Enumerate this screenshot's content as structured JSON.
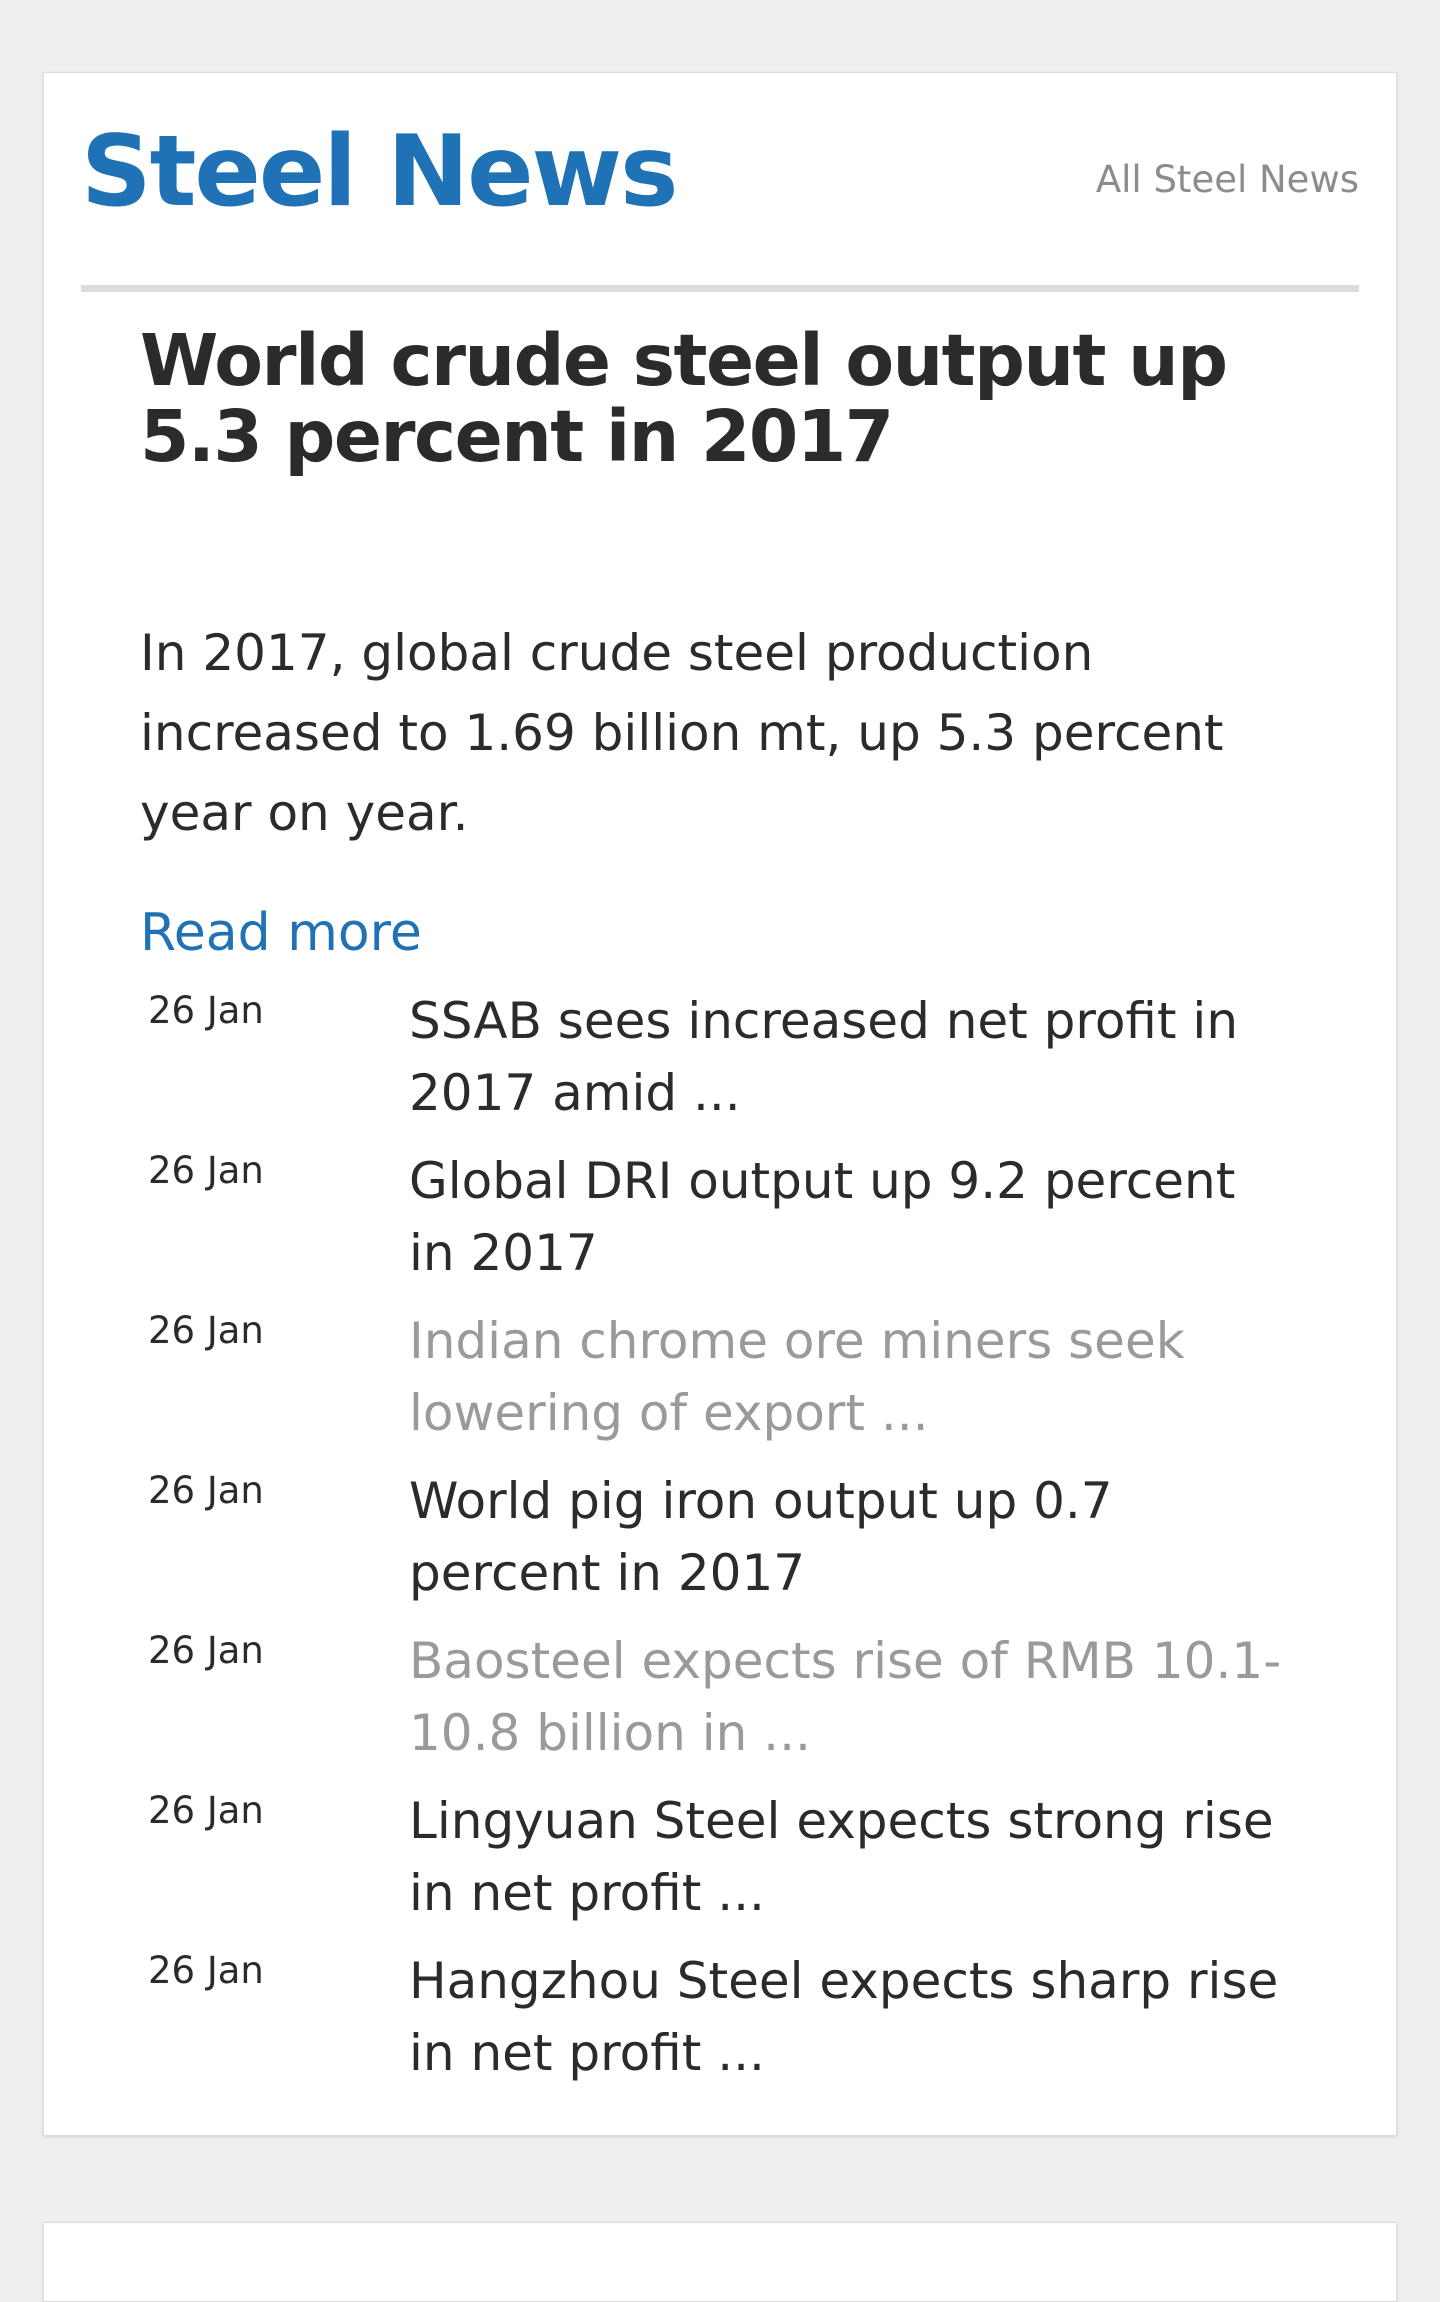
{
  "section": {
    "title": "Steel News",
    "all_link": "All Steel News"
  },
  "featured": {
    "headline": "World crude steel output up 5.3 percent in 2017",
    "summary": "In 2017, global crude steel production increased to 1.69 billion mt, up 5.3 percent year on year.",
    "read_more": "Read more"
  },
  "colors": {
    "brand_blue": "#1f72b5",
    "text": "#2b2b2b",
    "muted_link": "#9a9a9a",
    "divider": "#dcdcdc",
    "background": "#efefef"
  },
  "news": [
    {
      "date": "26 Jan",
      "title": "SSAB sees increased net profit in 2017 amid ...",
      "visited": false
    },
    {
      "date": "26 Jan",
      "title": "Global DRI output up 9.2 percent in 2017",
      "visited": false
    },
    {
      "date": "26 Jan",
      "title": "Indian chrome ore miners seek lowering of export ...",
      "visited": true
    },
    {
      "date": "26 Jan",
      "title": "World pig iron output up 0.7 percent in 2017",
      "visited": false
    },
    {
      "date": "26 Jan",
      "title": "Baosteel expects rise of RMB 10.1-10.8 billion in ...",
      "visited": true
    },
    {
      "date": "26 Jan",
      "title": "Lingyuan Steel expects strong rise in net profit ...",
      "visited": false
    },
    {
      "date": "26 Jan",
      "title": "Hangzhou Steel expects sharp rise in net profit ...",
      "visited": false
    }
  ]
}
